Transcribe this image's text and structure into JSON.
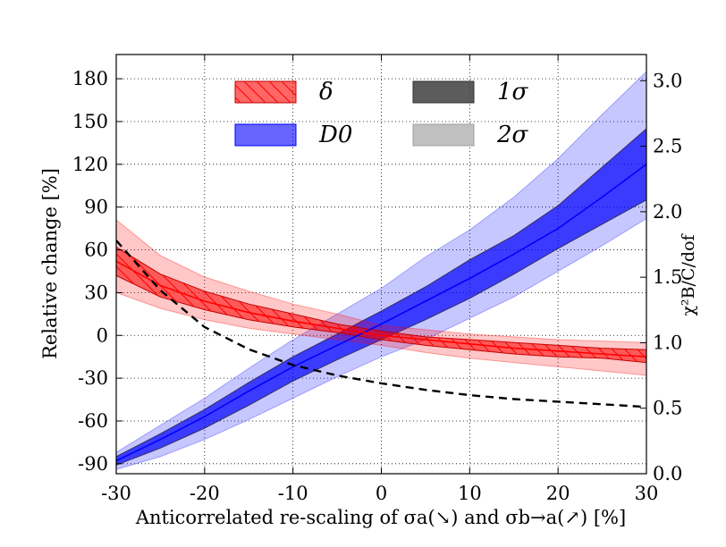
{
  "chart_data": {
    "type": "line",
    "xlabel": "Anticorrelated re-scaling of σa(↘) and σb→a(↗) [%]",
    "ylabel": "Relative change [%]",
    "y2label": "χ²B/C/dof",
    "xlim": [
      -30,
      30
    ],
    "ylim": [
      -97,
      197
    ],
    "y2lim": [
      0.0,
      3.2
    ],
    "xticks": [
      "-30",
      "-20",
      "-10",
      "0",
      "10",
      "20",
      "30"
    ],
    "yticks": [
      "-90",
      "-60",
      "-30",
      "0",
      "30",
      "60",
      "90",
      "120",
      "150",
      "180"
    ],
    "y2ticks": [
      "0.0",
      "0.5",
      "1.0",
      "1.5",
      "2.0",
      "2.5",
      "3.0"
    ],
    "grid": true,
    "legend_position": "top",
    "legend": [
      {
        "label": "δ",
        "type": "band-hatched",
        "color": "#ff0000"
      },
      {
        "label": "D0",
        "type": "band",
        "color": "#0000ff"
      },
      {
        "label": "1σ",
        "type": "band",
        "color": "#404040"
      },
      {
        "label": "2σ",
        "type": "band",
        "color": "#c0c0c0"
      }
    ],
    "x": [
      -30,
      -25,
      -20,
      -15,
      -10,
      -5,
      0,
      5,
      10,
      15,
      20,
      25,
      30
    ],
    "series": [
      {
        "name": "δ",
        "color": "#ff0000",
        "values": [
          52,
          35,
          24,
          16,
          10,
          5,
          0,
          -3,
          -6,
          -9,
          -11,
          -13,
          -15
        ],
        "band_1sigma": {
          "lower": [
            42,
            27,
            18,
            11,
            6,
            2,
            -3,
            -7,
            -10,
            -13,
            -15,
            -16,
            -19
          ],
          "upper": [
            62,
            43,
            31,
            22,
            15,
            8,
            3,
            -1,
            -3,
            -5,
            -7,
            -9,
            -10
          ]
        },
        "band_2sigma": {
          "lower": [
            30,
            19,
            11,
            5,
            1,
            -3,
            -7,
            -12,
            -16,
            -19,
            -22,
            -25,
            -28
          ],
          "upper": [
            81,
            56,
            41,
            31,
            22,
            15,
            7,
            4,
            1,
            -1,
            -3,
            -4,
            -5
          ]
        }
      },
      {
        "name": "D0",
        "color": "#0000ff",
        "values": [
          -88,
          -73,
          -57,
          -39,
          -22,
          -7,
          8,
          24,
          40,
          57,
          75,
          97,
          120
        ],
        "band_1sigma": {
          "lower": [
            -91,
            -79,
            -65,
            -49,
            -32,
            -17,
            -3,
            11,
            26,
            43,
            61,
            78,
            95
          ],
          "upper": [
            -85,
            -69,
            -52,
            -33,
            -15,
            1,
            17,
            34,
            53,
            70,
            91,
            118,
            145
          ]
        },
        "band_2sigma": {
          "lower": [
            -94,
            -85,
            -73,
            -59,
            -44,
            -29,
            -15,
            -3,
            12,
            27,
            45,
            63,
            82
          ],
          "upper": [
            -82,
            -63,
            -44,
            -23,
            -3,
            15,
            33,
            55,
            74,
            97,
            124,
            155,
            185
          ]
        }
      },
      {
        "name": "χ²",
        "axis": "right",
        "style": "dashed",
        "color": "#000000",
        "values": [
          1.78,
          1.4,
          1.12,
          0.95,
          0.83,
          0.75,
          0.69,
          0.64,
          0.6,
          0.57,
          0.55,
          0.53,
          0.51
        ]
      }
    ]
  }
}
